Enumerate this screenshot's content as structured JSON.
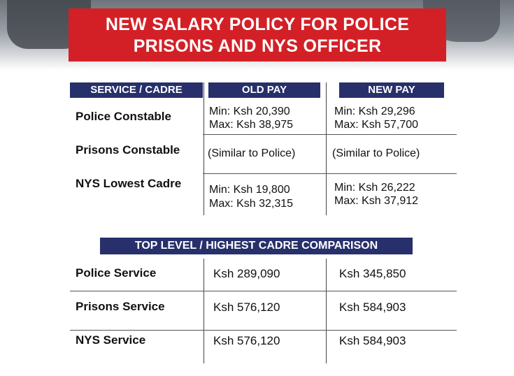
{
  "title": {
    "line1": "NEW SALARY POLICY FOR POLICE",
    "line2": "PRISONS AND NYS OFFICER"
  },
  "table1": {
    "headers": [
      "SERVICE / CADRE",
      "OLD PAY",
      "NEW PAY"
    ],
    "rows": [
      {
        "cadre": "Police Constable",
        "old": [
          "Min: Ksh 20,390",
          "Max: Ksh 38,975"
        ],
        "new": [
          "Min: Ksh 29,296",
          "Max: Ksh 57,700"
        ]
      },
      {
        "cadre": "Prisons Constable",
        "old": [
          "(Similar to Police)"
        ],
        "new": [
          "(Similar to Police)"
        ]
      },
      {
        "cadre": "NYS Lowest Cadre",
        "old": [
          "Min: Ksh 19,800",
          "Max: Ksh 32,315"
        ],
        "new": [
          "Min: Ksh 26,222",
          "Max: Ksh 37,912"
        ]
      }
    ]
  },
  "table2": {
    "header": "TOP LEVEL / HIGHEST CADRE COMPARISON",
    "rows": [
      {
        "service": "Police Service",
        "old": "Ksh 289,090",
        "new": "Ksh 345,850"
      },
      {
        "service": "Prisons Service",
        "old": "Ksh 576,120",
        "new": "Ksh 584,903"
      },
      {
        "service": "NYS Service",
        "old": "Ksh 576,120",
        "new": "Ksh 584,903"
      }
    ]
  },
  "colors": {
    "title_bg": "#d32027",
    "header_bg": "#27306b"
  }
}
